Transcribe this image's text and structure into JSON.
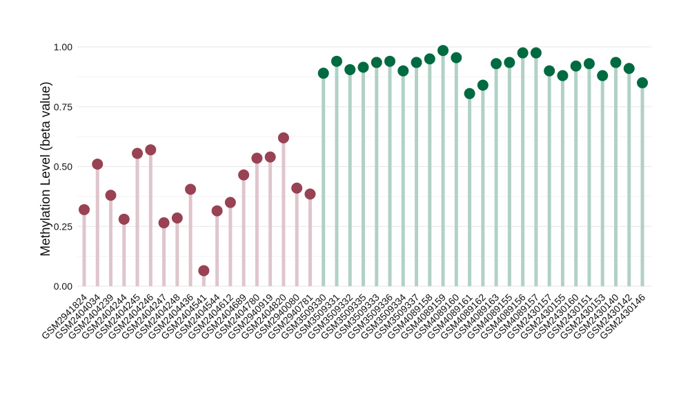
{
  "chart_data": {
    "type": "lollipop",
    "title": "",
    "xlabel": "",
    "ylabel": "Methylation Level (beta value)",
    "ylim": [
      0,
      1.0
    ],
    "yticks": [
      "0.00",
      "0.25",
      "0.50",
      "0.75",
      "1.00"
    ],
    "ytick_values": [
      0,
      0.25,
      0.5,
      0.75,
      1.0
    ],
    "grid": true,
    "legend": "none",
    "colors": {
      "group1_point": "#984253",
      "group1_stem": "#dfc5cc",
      "group2_point": "#006a41",
      "group2_stem": "#b1d1c5"
    },
    "categories": [
      "GSM2941824",
      "GSM2404034",
      "GSM2404239",
      "GSM2404244",
      "GSM2404245",
      "GSM2404246",
      "GSM2404247",
      "GSM2404248",
      "GSM2404436",
      "GSM2404541",
      "GSM2404544",
      "GSM2404612",
      "GSM2404689",
      "GSM2404780",
      "GSM2940919",
      "GSM2404820",
      "GSM2940080",
      "GSM2940781",
      "GSM3509330",
      "GSM3509331",
      "GSM3509332",
      "GSM3509335",
      "GSM3509333",
      "GSM3509336",
      "GSM3509334",
      "GSM3509337",
      "GSM4089158",
      "GSM4089159",
      "GSM4089160",
      "GSM4089161",
      "GSM4089162",
      "GSM4089163",
      "GSM4089155",
      "GSM4089156",
      "GSM4089157",
      "GSM2430157",
      "GSM2430155",
      "GSM2430160",
      "GSM2430151",
      "GSM2430153",
      "GSM2430140",
      "GSM2430142",
      "GSM2430146"
    ],
    "values": [
      0.32,
      0.51,
      0.38,
      0.28,
      0.555,
      0.57,
      0.265,
      0.285,
      0.405,
      0.065,
      0.315,
      0.35,
      0.465,
      0.535,
      0.54,
      0.62,
      0.41,
      0.385,
      0.89,
      0.94,
      0.905,
      0.915,
      0.935,
      0.94,
      0.9,
      0.935,
      0.95,
      0.985,
      0.955,
      0.805,
      0.84,
      0.93,
      0.935,
      0.975,
      0.975,
      0.9,
      0.88,
      0.92,
      0.93,
      0.88,
      0.935,
      0.91,
      0.85
    ],
    "group_split_index": 18
  }
}
